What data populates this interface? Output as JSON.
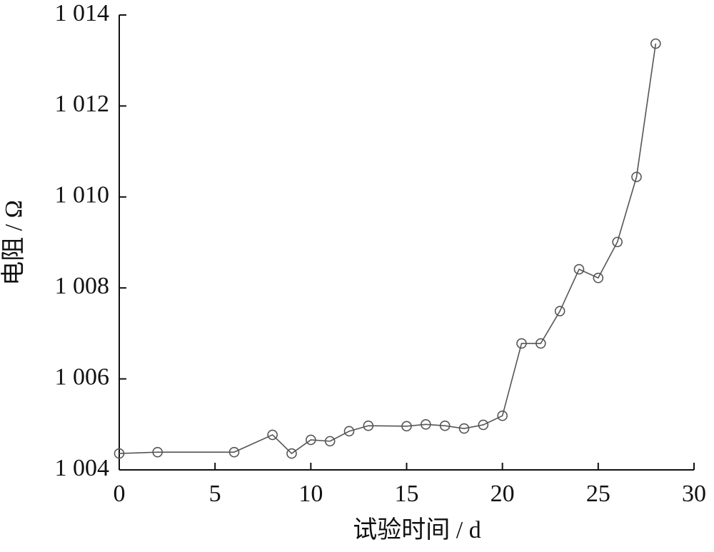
{
  "chart_data": {
    "type": "line",
    "x_label": "试验时间 / d",
    "y_label": "电阻 / Ω",
    "x": [
      0,
      2,
      6,
      8,
      9,
      10,
      11,
      12,
      13,
      15,
      16,
      17,
      18,
      19,
      20,
      21,
      22,
      23,
      24,
      25,
      26,
      27,
      28
    ],
    "series": [
      {
        "color": "#555555",
        "values": [
          1004.36,
          1004.39,
          1004.39,
          1004.77,
          1004.36,
          1004.66,
          1004.63,
          1004.85,
          1004.97,
          1004.96,
          1005.0,
          1004.97,
          1004.91,
          1004.99,
          1005.19,
          1006.78,
          1006.78,
          1007.49,
          1008.41,
          1008.22,
          1009.01,
          1010.44,
          1013.37
        ]
      }
    ],
    "xlim": [
      0,
      30
    ],
    "xticks": [
      0,
      5,
      10,
      15,
      20,
      25,
      30
    ],
    "ylim": [
      1004,
      1014
    ],
    "yticks": [
      {
        "value": 1004,
        "label": "1 004"
      },
      {
        "value": 1006,
        "label": "1 006"
      },
      {
        "value": 1008,
        "label": "1 008"
      },
      {
        "value": 1010,
        "label": "1 010"
      },
      {
        "value": 1012,
        "label": "1 012"
      },
      {
        "value": 1014,
        "label": "1 014"
      }
    ]
  }
}
